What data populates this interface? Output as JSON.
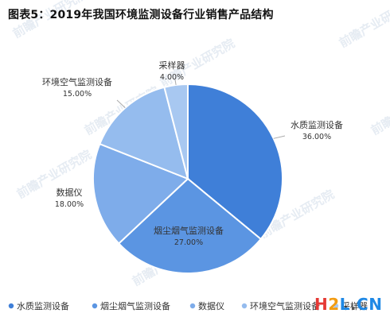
{
  "title": "图表5：2019年我国环境监测设备行业销售产品结构",
  "watermark_text": "前瞻产业研究院",
  "site_logo": {
    "h": "H",
    "two": "2",
    "l": "L",
    "dot": ".",
    "cn": "CN"
  },
  "colors": {
    "slice_dark": "#3f7fd8",
    "slice_mid": "#5b95e2",
    "slice_light": "#7eacea",
    "slice_lighter": "#95bcee",
    "slice_lightest": "#a8c8f1",
    "label_text": "#333333",
    "leader_line": "#aaaaaa",
    "slice_border": "#ffffff",
    "watermark": "#e6ecf3"
  },
  "chart_data": {
    "type": "pie",
    "title": "图表5：2019年我国环境监测设备行业销售产品结构",
    "slices": [
      {
        "label": "水质监测设备",
        "value": 36.0,
        "value_text": "36.00%",
        "color": "#3f7fd8"
      },
      {
        "label": "烟尘烟气监测设备",
        "value": 27.0,
        "value_text": "27.00%",
        "color": "#5b95e2"
      },
      {
        "label": "数据仪",
        "value": 18.0,
        "value_text": "18.00%",
        "color": "#7eacea"
      },
      {
        "label": "环境空气监测设备",
        "value": 15.0,
        "value_text": "15.00%",
        "color": "#95bcee"
      },
      {
        "label": "采样器",
        "value": 4.0,
        "value_text": "4.00%",
        "color": "#a8c8f1"
      }
    ],
    "start_angle": "12 o'clock",
    "direction": "clockwise",
    "legend_position": "bottom",
    "legend": [
      "水质监测设备",
      "烟尘烟气监测设备",
      "数据仪",
      "环境空气监测设备",
      "采样器"
    ]
  }
}
